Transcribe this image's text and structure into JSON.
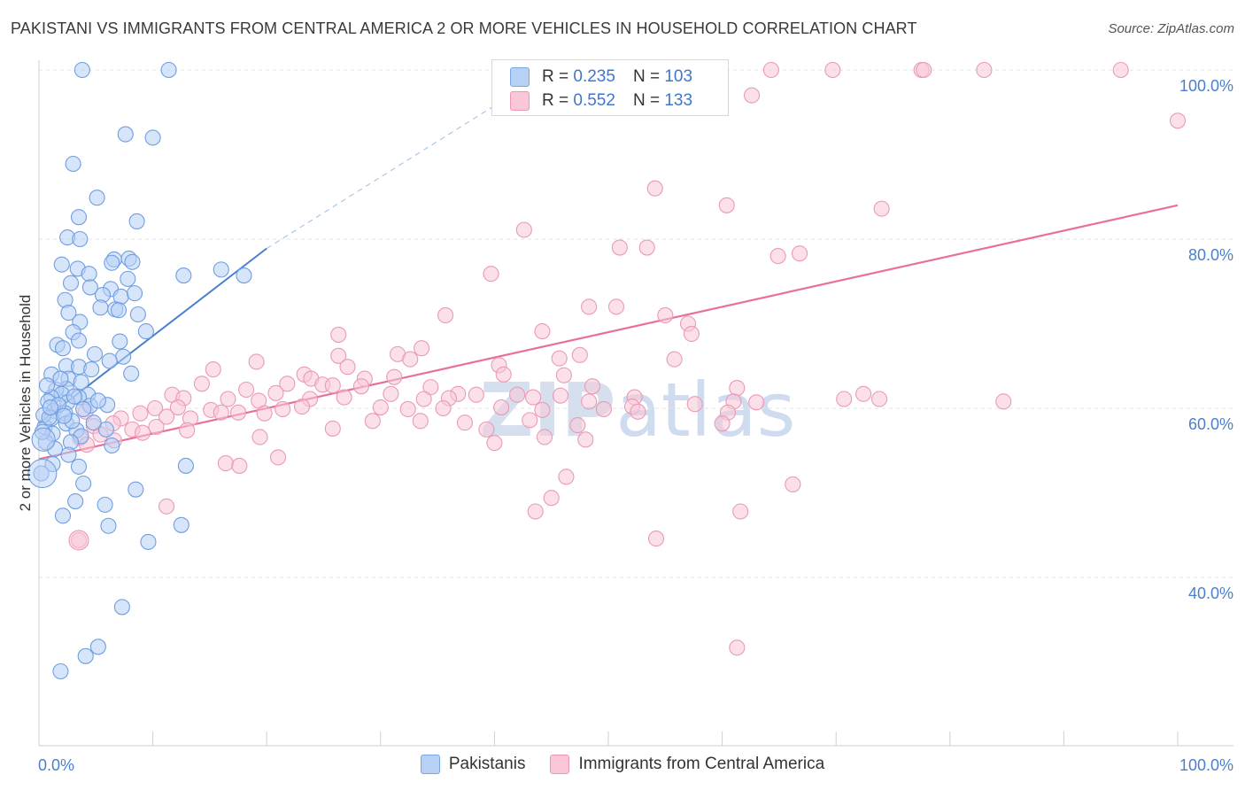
{
  "title": "PAKISTANI VS IMMIGRANTS FROM CENTRAL AMERICA 2 OR MORE VEHICLES IN HOUSEHOLD CORRELATION CHART",
  "source": "Source: ZipAtlas.com",
  "watermark": "ZIPatlas",
  "legend": {
    "r_label": "R =",
    "n_label": "N =",
    "series1": {
      "r": "0.235",
      "n": "103"
    },
    "series2": {
      "r": "0.552",
      "n": "133"
    }
  },
  "chart_data": {
    "type": "scatter",
    "title": "PAKISTANI VS IMMIGRANTS FROM CENTRAL AMERICA 2 OR MORE VEHICLES IN HOUSEHOLD CORRELATION CHART",
    "ylabel": "2 or more Vehicles in Household",
    "xlim": [
      0,
      100
    ],
    "ylim": [
      20,
      102
    ],
    "y_ticks": [
      {
        "value": 100,
        "label": "100.0%"
      },
      {
        "value": 80,
        "label": "80.0%"
      },
      {
        "value": 60,
        "label": "60.0%"
      },
      {
        "value": 40,
        "label": "40.0%"
      }
    ],
    "x_tick_labels": {
      "min": "0.0%",
      "max": "100.0%"
    },
    "colors": {
      "series1": "#4a7fd0",
      "series2": "#e96f9a",
      "series1_fill": "#b7d0f5",
      "series2_fill": "#f9c7d7"
    },
    "series": [
      {
        "name": "Pakistanis",
        "r": 0.235,
        "n": 103,
        "trend": {
          "x": [
            0,
            20
          ],
          "y": [
            58.2,
            78.9
          ],
          "extended_to": [
            45,
            100
          ]
        },
        "points": [
          [
            3.8,
            100
          ],
          [
            11.4,
            100
          ],
          [
            7.6,
            92.4
          ],
          [
            10,
            92
          ],
          [
            3,
            88.9
          ],
          [
            5.1,
            84.9
          ],
          [
            3.5,
            82.6
          ],
          [
            8.6,
            82.1
          ],
          [
            2.5,
            80.2
          ],
          [
            3.6,
            80
          ],
          [
            2,
            77
          ],
          [
            6.6,
            77.6
          ],
          [
            7.9,
            77.7
          ],
          [
            6.4,
            77.2
          ],
          [
            8.2,
            77.3
          ],
          [
            3.4,
            76.5
          ],
          [
            4.4,
            75.9
          ],
          [
            7.8,
            75.3
          ],
          [
            12.7,
            75.7
          ],
          [
            18,
            75.7
          ],
          [
            16,
            76.4
          ],
          [
            2.8,
            74.8
          ],
          [
            4.5,
            74.3
          ],
          [
            6.3,
            74.1
          ],
          [
            5.6,
            73.4
          ],
          [
            7.2,
            73.2
          ],
          [
            8.4,
            73.6
          ],
          [
            2.3,
            72.8
          ],
          [
            5.4,
            71.9
          ],
          [
            6.7,
            71.7
          ],
          [
            7,
            71.6
          ],
          [
            2.6,
            71.3
          ],
          [
            3.6,
            70.2
          ],
          [
            8.7,
            71.1
          ],
          [
            9.4,
            69.1
          ],
          [
            3,
            69
          ],
          [
            3.5,
            68
          ],
          [
            7.1,
            67.9
          ],
          [
            1.6,
            67.5
          ],
          [
            2.1,
            67.1
          ],
          [
            4.9,
            66.4
          ],
          [
            7.4,
            66.1
          ],
          [
            6.2,
            65.6
          ],
          [
            2.4,
            65
          ],
          [
            3.5,
            64.9
          ],
          [
            4.6,
            64.6
          ],
          [
            8.1,
            64.1
          ],
          [
            1.1,
            64
          ],
          [
            2.6,
            63.5
          ],
          [
            3.7,
            63.1
          ],
          [
            2.4,
            62.3
          ],
          [
            1.5,
            62.2
          ],
          [
            2,
            61.7
          ],
          [
            1.1,
            61.3
          ],
          [
            4.3,
            61.6
          ],
          [
            3.5,
            61.3
          ],
          [
            0.8,
            60.8
          ],
          [
            2.5,
            60.7
          ],
          [
            4.5,
            60.3
          ],
          [
            6,
            60.4
          ],
          [
            1.3,
            59.7
          ],
          [
            2.3,
            59.4
          ],
          [
            3.9,
            59.9
          ],
          [
            1.1,
            58.8
          ],
          [
            2.4,
            58.2
          ],
          [
            0.5,
            57.8
          ],
          [
            3.3,
            57.4
          ],
          [
            5.9,
            57.5
          ],
          [
            1.2,
            57
          ],
          [
            3.7,
            56.7
          ],
          [
            0.6,
            56
          ],
          [
            2.8,
            56
          ],
          [
            6.4,
            55.6
          ],
          [
            2.6,
            54.5
          ],
          [
            1.2,
            53.4
          ],
          [
            3.5,
            53.1
          ],
          [
            12.9,
            53.2
          ],
          [
            0.2,
            52.3
          ],
          [
            3.9,
            51.1
          ],
          [
            8.5,
            50.4
          ],
          [
            3.2,
            49
          ],
          [
            5.8,
            48.6
          ],
          [
            2.1,
            47.3
          ],
          [
            6.1,
            46.1
          ],
          [
            12.5,
            46.2
          ],
          [
            9.6,
            44.2
          ],
          [
            7.3,
            36.5
          ],
          [
            5.2,
            31.8
          ],
          [
            4.1,
            30.7
          ],
          [
            1.9,
            28.9
          ],
          [
            0.4,
            59.2
          ],
          [
            0.9,
            58.9
          ],
          [
            1.7,
            60.4
          ],
          [
            2.9,
            58.5
          ],
          [
            4.8,
            58.3
          ],
          [
            0.7,
            62.7
          ],
          [
            1.9,
            63.5
          ],
          [
            1.4,
            55.2
          ],
          [
            0.3,
            57.2
          ],
          [
            2.2,
            59.1
          ],
          [
            3.1,
            61.4
          ],
          [
            5.2,
            60.9
          ],
          [
            1.0,
            60.1
          ]
        ]
      },
      {
        "name": "Immigrants from Central America",
        "r": 0.552,
        "n": 133,
        "trend": {
          "x": [
            0,
            100
          ],
          "y": [
            54,
            84
          ]
        },
        "points": [
          [
            64.3,
            100
          ],
          [
            69.7,
            100
          ],
          [
            77.5,
            100
          ],
          [
            77.7,
            100
          ],
          [
            83,
            100
          ],
          [
            95,
            100
          ],
          [
            62.6,
            97
          ],
          [
            100,
            94
          ],
          [
            54.1,
            86
          ],
          [
            60.4,
            84
          ],
          [
            74,
            83.6
          ],
          [
            42.6,
            81.1
          ],
          [
            51,
            79
          ],
          [
            53.4,
            79
          ],
          [
            64.9,
            78
          ],
          [
            66.8,
            78.3
          ],
          [
            39.7,
            75.9
          ],
          [
            48.3,
            72
          ],
          [
            50.7,
            72
          ],
          [
            55,
            71
          ],
          [
            57,
            70
          ],
          [
            57.3,
            68.8
          ],
          [
            35.7,
            71
          ],
          [
            44.2,
            69.1
          ],
          [
            26.3,
            68.7
          ],
          [
            33.6,
            67.1
          ],
          [
            31.5,
            66.4
          ],
          [
            26.3,
            66.2
          ],
          [
            32.6,
            65.8
          ],
          [
            40.4,
            65.1
          ],
          [
            45.7,
            65.9
          ],
          [
            55.8,
            65.8
          ],
          [
            47.5,
            66.3
          ],
          [
            19.1,
            65.5
          ],
          [
            27.1,
            64.9
          ],
          [
            15.3,
            64.6
          ],
          [
            23.3,
            64
          ],
          [
            23.9,
            63.5
          ],
          [
            28.6,
            63.5
          ],
          [
            31.2,
            63.7
          ],
          [
            40.8,
            64
          ],
          [
            46.1,
            63.9
          ],
          [
            14.3,
            62.9
          ],
          [
            21.8,
            62.9
          ],
          [
            24.9,
            62.8
          ],
          [
            25.8,
            62.7
          ],
          [
            28.3,
            62.6
          ],
          [
            34.4,
            62.5
          ],
          [
            18.2,
            62.2
          ],
          [
            20.8,
            61.8
          ],
          [
            30.9,
            61.7
          ],
          [
            36.8,
            61.7
          ],
          [
            38.4,
            61.6
          ],
          [
            42,
            61.6
          ],
          [
            48.6,
            62.6
          ],
          [
            52.3,
            61.3
          ],
          [
            61.3,
            62.4
          ],
          [
            70.7,
            61.1
          ],
          [
            72.4,
            61.7
          ],
          [
            11.7,
            61.6
          ],
          [
            12.7,
            61.2
          ],
          [
            16.6,
            61.1
          ],
          [
            19.3,
            60.9
          ],
          [
            23.8,
            61.1
          ],
          [
            26.8,
            61.3
          ],
          [
            33.8,
            61.1
          ],
          [
            36,
            61.2
          ],
          [
            43.4,
            61.3
          ],
          [
            45.8,
            61.5
          ],
          [
            48.3,
            60.8
          ],
          [
            52.1,
            60.2
          ],
          [
            57.6,
            60.5
          ],
          [
            61,
            60.8
          ],
          [
            63,
            60.7
          ],
          [
            73.8,
            61.1
          ],
          [
            84.7,
            60.8
          ],
          [
            10.2,
            60
          ],
          [
            12.2,
            60.1
          ],
          [
            15.1,
            59.8
          ],
          [
            17.5,
            59.5
          ],
          [
            23.1,
            60.2
          ],
          [
            30,
            60.1
          ],
          [
            32.4,
            59.9
          ],
          [
            35.5,
            60
          ],
          [
            40.6,
            60.1
          ],
          [
            44.2,
            59.8
          ],
          [
            49.6,
            59.9
          ],
          [
            52.6,
            59.6
          ],
          [
            60.5,
            59.5
          ],
          [
            4.1,
            59.6
          ],
          [
            7.2,
            58.8
          ],
          [
            8.9,
            59.4
          ],
          [
            11.2,
            59
          ],
          [
            13.3,
            58.8
          ],
          [
            16,
            59.5
          ],
          [
            19.8,
            59.4
          ],
          [
            21.4,
            59.9
          ],
          [
            29.3,
            58.5
          ],
          [
            33.5,
            58.5
          ],
          [
            37.4,
            58.3
          ],
          [
            43.1,
            58.6
          ],
          [
            47.3,
            58
          ],
          [
            60,
            58.2
          ],
          [
            4.8,
            57.9
          ],
          [
            6.5,
            58.2
          ],
          [
            8.2,
            57.5
          ],
          [
            9.1,
            57.1
          ],
          [
            10.3,
            57.8
          ],
          [
            13,
            57.4
          ],
          [
            25.8,
            57.6
          ],
          [
            39.3,
            57.5
          ],
          [
            44.4,
            56.6
          ],
          [
            48,
            56.3
          ],
          [
            6.6,
            56.2
          ],
          [
            3.6,
            56.5
          ],
          [
            4.2,
            55.7
          ],
          [
            5.4,
            56.9
          ],
          [
            19.4,
            56.6
          ],
          [
            40,
            55.9
          ],
          [
            16.4,
            53.5
          ],
          [
            17.6,
            53.2
          ],
          [
            21,
            54.2
          ],
          [
            46.3,
            51.9
          ],
          [
            66.2,
            51
          ],
          [
            45,
            49.4
          ],
          [
            11.2,
            48.4
          ],
          [
            43.6,
            47.8
          ],
          [
            61.6,
            47.8
          ],
          [
            54.2,
            44.6
          ],
          [
            3.5,
            44.4
          ],
          [
            61.3,
            31.7
          ]
        ]
      }
    ]
  }
}
